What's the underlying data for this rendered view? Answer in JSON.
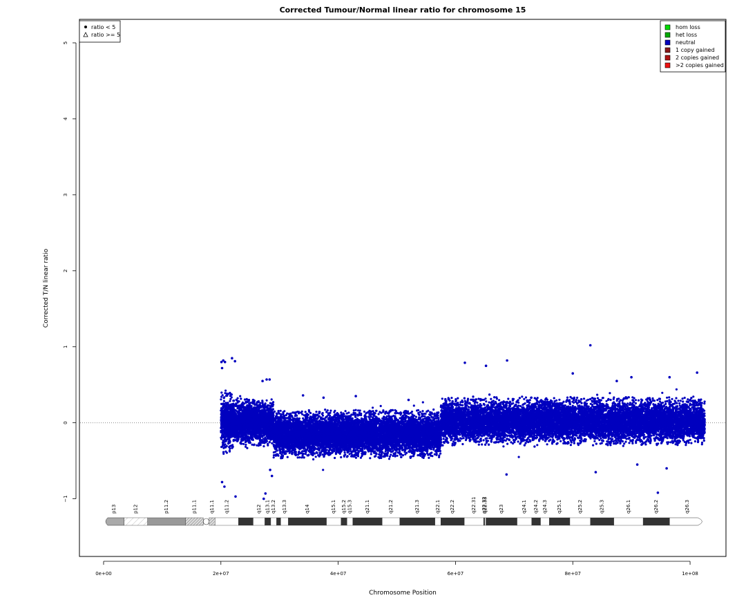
{
  "chart_data": {
    "type": "scatter",
    "title": "Corrected Tumour/Normal linear ratio for chromosome  15",
    "xlabel": "Chromosome Position",
    "ylabel": "Corrected T/N linear ratio",
    "xlim": [
      -4000000,
      106000000
    ],
    "ylim": [
      -1.75,
      5.3
    ],
    "x_ticks": [
      {
        "value": 0,
        "label": "0e+00"
      },
      {
        "value": 20000000,
        "label": "2e+07"
      },
      {
        "value": 40000000,
        "label": "4e+07"
      },
      {
        "value": 60000000,
        "label": "6e+07"
      },
      {
        "value": 80000000,
        "label": "8e+07"
      },
      {
        "value": 100000000,
        "label": "1e+08"
      }
    ],
    "y_ticks": [
      {
        "value": -1,
        "label": "−1"
      },
      {
        "value": 0,
        "label": "0"
      },
      {
        "value": 1,
        "label": "1"
      },
      {
        "value": 2,
        "label": "2"
      },
      {
        "value": 3,
        "label": "3"
      },
      {
        "value": 4,
        "label": "4"
      },
      {
        "value": 5,
        "label": "5"
      }
    ],
    "reference_line": {
      "y": 0,
      "style": "dotted",
      "color": "#888888"
    },
    "grid": false,
    "point_color": "#0000bf",
    "series": [
      {
        "name": "neutral",
        "color": "#0000bf",
        "density_segments": [
          {
            "x_start": 20000000,
            "x_end": 22000000,
            "mean": 0.0,
            "spread": 0.22
          },
          {
            "x_start": 22000000,
            "x_end": 29000000,
            "mean": 0.0,
            "spread": 0.17
          },
          {
            "x_start": 29000000,
            "x_end": 57500000,
            "mean": -0.15,
            "spread": 0.17
          },
          {
            "x_start": 57500000,
            "x_end": 102500000,
            "mean": 0.02,
            "spread": 0.17
          }
        ]
      }
    ],
    "outliers": [
      [
        20100000,
        0.8
      ],
      [
        20400000,
        0.82
      ],
      [
        20700000,
        0.8
      ],
      [
        20200000,
        0.72
      ],
      [
        21900000,
        0.85
      ],
      [
        22400000,
        0.81
      ],
      [
        20200000,
        -0.78
      ],
      [
        20600000,
        -0.84
      ],
      [
        22500000,
        -0.97
      ],
      [
        27600000,
        -0.93
      ],
      [
        27300000,
        -1.0
      ],
      [
        28700000,
        -0.7
      ],
      [
        28400000,
        -0.62
      ],
      [
        27800000,
        0.57
      ],
      [
        28300000,
        0.57
      ],
      [
        27100000,
        0.55
      ],
      [
        83000000,
        1.02
      ],
      [
        68800000,
        0.82
      ],
      [
        65200000,
        0.75
      ],
      [
        61600000,
        0.79
      ],
      [
        80000000,
        0.65
      ],
      [
        87500000,
        0.55
      ],
      [
        90000000,
        0.6
      ],
      [
        101200000,
        0.66
      ],
      [
        96500000,
        0.6
      ],
      [
        94500000,
        -0.92
      ],
      [
        68700000,
        -0.68
      ],
      [
        83900000,
        -0.65
      ],
      [
        96000000,
        -0.6
      ],
      [
        91000000,
        -0.55
      ],
      [
        43000000,
        0.35
      ],
      [
        37500000,
        0.33
      ],
      [
        52000000,
        0.3
      ],
      [
        34000000,
        0.36
      ]
    ],
    "point_legend": {
      "position": "top-left",
      "entries": [
        {
          "symbol": "circle",
          "label": "ratio < 5"
        },
        {
          "symbol": "triangle",
          "label": "ratio >= 5"
        }
      ]
    },
    "legend": {
      "position": "top-right",
      "entries": [
        {
          "label": "hom loss",
          "color": "#00dd00"
        },
        {
          "label": "het loss",
          "color": "#00aa00"
        },
        {
          "label": "neutral",
          "color": "#0000bf"
        },
        {
          "label": "1 copy gained",
          "color": "#8b1a1a"
        },
        {
          "label": "2 copies gained",
          "color": "#b01515"
        },
        {
          "label": ">2 copies gained",
          "color": "#ee1111"
        }
      ]
    },
    "ideogram": {
      "bands": [
        {
          "name": "p13",
          "start": 0,
          "end": 3500000,
          "fill": "#aaaaaa",
          "shape": "left-cap"
        },
        {
          "name": "p12",
          "start": 3500000,
          "end": 7500000,
          "fill": "hatch-light"
        },
        {
          "name": "p11.2",
          "start": 7500000,
          "end": 14000000,
          "fill": "#999999"
        },
        {
          "name": "p11.1",
          "start": 14000000,
          "end": 17000000,
          "fill": "hatch-dark"
        },
        {
          "name": "",
          "start": 17000000,
          "end": 18000000,
          "fill": "hatch-dark",
          "shape": "centromere"
        },
        {
          "name": "q11.1",
          "start": 18000000,
          "end": 19000000,
          "fill": "hatch-dark"
        },
        {
          "name": "q11.2",
          "start": 19000000,
          "end": 23000000,
          "fill": "#ffffff"
        },
        {
          "name": "",
          "start": 23000000,
          "end": 25500000,
          "fill": "#333333"
        },
        {
          "name": "q12",
          "start": 25500000,
          "end": 27500000,
          "fill": "#ffffff"
        },
        {
          "name": "q13.1",
          "start": 27500000,
          "end": 28500000,
          "fill": "#333333"
        },
        {
          "name": "q13.2",
          "start": 28500000,
          "end": 29500000,
          "fill": "#ffffff"
        },
        {
          "name": "",
          "start": 29500000,
          "end": 30200000,
          "fill": "#333333"
        },
        {
          "name": "q13.3",
          "start": 30200000,
          "end": 31500000,
          "fill": "#ffffff"
        },
        {
          "name": "q14",
          "start": 31500000,
          "end": 38000000,
          "fill": "#333333"
        },
        {
          "name": "q15.1",
          "start": 38000000,
          "end": 40500000,
          "fill": "#ffffff"
        },
        {
          "name": "q15.2",
          "start": 40500000,
          "end": 41500000,
          "fill": "#333333"
        },
        {
          "name": "q15.3",
          "start": 41500000,
          "end": 42500000,
          "fill": "#ffffff"
        },
        {
          "name": "q21.1",
          "start": 42500000,
          "end": 47500000,
          "fill": "#333333"
        },
        {
          "name": "q21.2",
          "start": 47500000,
          "end": 50500000,
          "fill": "#ffffff"
        },
        {
          "name": "q21.3",
          "start": 50500000,
          "end": 56500000,
          "fill": "#333333"
        },
        {
          "name": "q22.1",
          "start": 56500000,
          "end": 57500000,
          "fill": "#ffffff"
        },
        {
          "name": "q22.2",
          "start": 57500000,
          "end": 61500000,
          "fill": "#333333"
        },
        {
          "name": "q22.31",
          "start": 61500000,
          "end": 64800000,
          "fill": "#ffffff"
        },
        {
          "name": "q22.32",
          "start": 64800000,
          "end": 65000000,
          "fill": "#333333"
        },
        {
          "name": "q22.33",
          "start": 65000000,
          "end": 65200000,
          "fill": "#ffffff"
        },
        {
          "name": "q23",
          "start": 65200000,
          "end": 70500000,
          "fill": "#333333"
        },
        {
          "name": "q24.1",
          "start": 70500000,
          "end": 73000000,
          "fill": "#ffffff"
        },
        {
          "name": "q24.2",
          "start": 73000000,
          "end": 74500000,
          "fill": "#333333"
        },
        {
          "name": "q24.3",
          "start": 74500000,
          "end": 76000000,
          "fill": "#ffffff"
        },
        {
          "name": "q25.1",
          "start": 76000000,
          "end": 79500000,
          "fill": "#333333"
        },
        {
          "name": "q25.2",
          "start": 79500000,
          "end": 83000000,
          "fill": "#ffffff"
        },
        {
          "name": "q25.3",
          "start": 83000000,
          "end": 87000000,
          "fill": "#333333"
        },
        {
          "name": "q26.1",
          "start": 87000000,
          "end": 92000000,
          "fill": "#ffffff"
        },
        {
          "name": "q26.2",
          "start": 92000000,
          "end": 96500000,
          "fill": "#333333"
        },
        {
          "name": "q26.3",
          "start": 96500000,
          "end": 102500000,
          "fill": "#ffffff",
          "shape": "right-cap"
        }
      ]
    }
  }
}
